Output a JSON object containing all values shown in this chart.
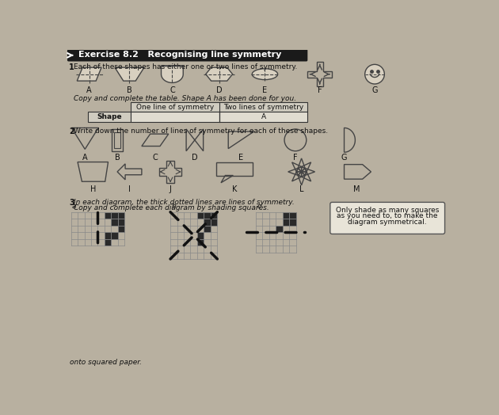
{
  "bg_color": "#b8b0a0",
  "header_bg": "#1a1a1a",
  "header_text": "Exercise 8.2   Recognising line symmetry",
  "section1_text": "Each of these shapes has either one or two lines of symmetry.",
  "table_instruction": "Copy and complete the table. Shape A has been done for you.",
  "table_col1": "One line of symmetry",
  "table_col2": "Two lines of symmetry",
  "table_row_label": "Shape",
  "table_row_value": "A",
  "section2_text": "Write down the number of lines of symmetry for each of these shapes.",
  "section3_text1": "In each diagram, the thick dotted lines are lines of symmetry.",
  "section3_text2": "Copy and complete each diagram by shading squares.",
  "note_text": "Only shade as many squares\nas you need to, to make the\ndiagram symmetrical.",
  "bottom_text": "onto squared paper.",
  "lc": "#444444",
  "sf": "#d8d0c0",
  "tc": "#111111",
  "gc": "#888888",
  "sc": "#2a2a2a"
}
